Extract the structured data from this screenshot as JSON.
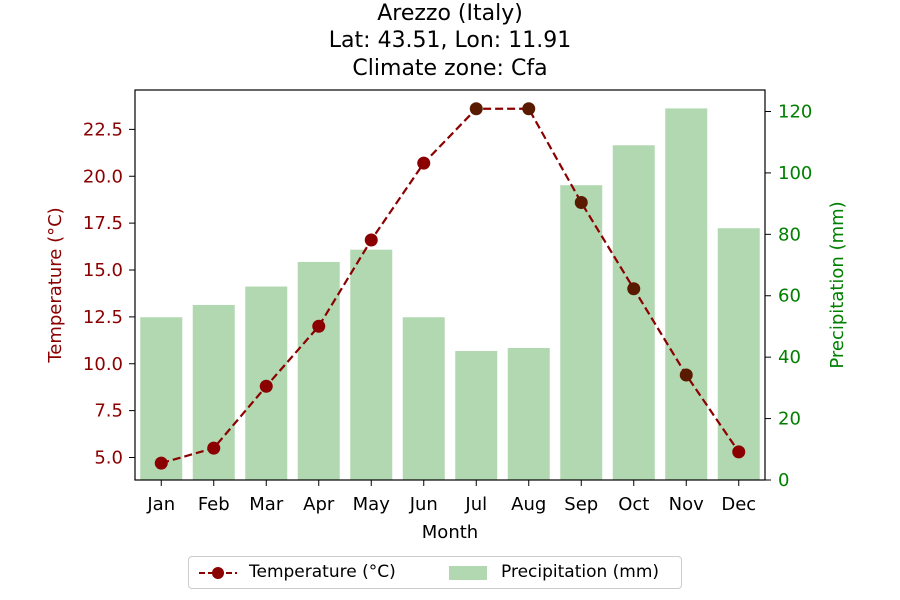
{
  "chart_data": {
    "type": "bar+line",
    "title_lines": [
      "Arezzo (Italy)",
      "Lat: 43.51, Lon: 11.91",
      "Climate zone: Cfa"
    ],
    "xlabel": "Month",
    "categories": [
      "Jan",
      "Feb",
      "Mar",
      "Apr",
      "May",
      "Jun",
      "Jul",
      "Aug",
      "Sep",
      "Oct",
      "Nov",
      "Dec"
    ],
    "temperature": {
      "name": "Temperature (°C)",
      "ylabel": "Temperature (°C)",
      "color": "#8b0000",
      "values": [
        4.7,
        5.5,
        8.8,
        12.0,
        16.6,
        20.7,
        23.6,
        23.6,
        18.6,
        14.0,
        9.4,
        5.3
      ],
      "ylim": [
        3.8,
        24.6
      ],
      "ticks": [
        "5.0",
        "7.5",
        "10.0",
        "12.5",
        "15.0",
        "17.5",
        "20.0",
        "22.5"
      ]
    },
    "precipitation": {
      "name": "Precipitation (mm)",
      "ylabel": "Precipitation (mm)",
      "color": "#008000",
      "bar_color": "#b2d8b2",
      "values": [
        53,
        57,
        63,
        71,
        75,
        53,
        42,
        43,
        96,
        109,
        121,
        82
      ],
      "ylim": [
        0,
        127
      ],
      "ticks": [
        "0",
        "20",
        "40",
        "60",
        "80",
        "100",
        "120"
      ]
    },
    "legend_position": "bottom-center"
  }
}
